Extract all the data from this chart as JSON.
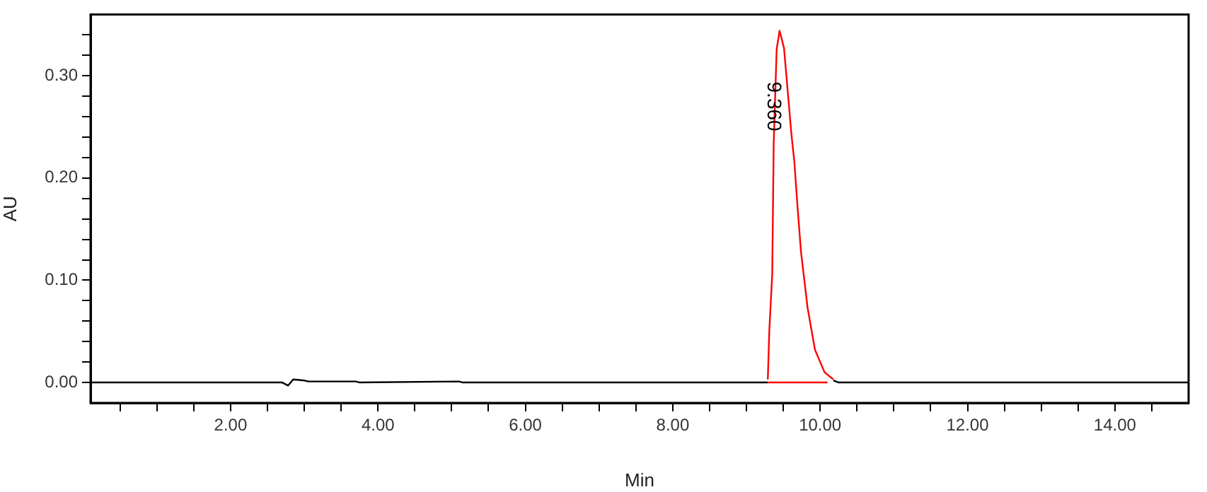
{
  "chart_data": {
    "type": "line",
    "xlabel": "Min",
    "ylabel": "AU",
    "xlim": [
      0.1,
      15
    ],
    "ylim": [
      -0.02,
      0.36
    ],
    "xticks": [
      {
        "value": 0.5,
        "label": null
      },
      {
        "value": 1,
        "label": null
      },
      {
        "value": 1.5,
        "label": null
      },
      {
        "value": 2,
        "label": "2.00"
      },
      {
        "value": 2.5,
        "label": null
      },
      {
        "value": 3,
        "label": null
      },
      {
        "value": 3.5,
        "label": null
      },
      {
        "value": 4,
        "label": "4.00"
      },
      {
        "value": 4.5,
        "label": null
      },
      {
        "value": 5,
        "label": null
      },
      {
        "value": 5.5,
        "label": null
      },
      {
        "value": 6,
        "label": "6.00"
      },
      {
        "value": 6.5,
        "label": null
      },
      {
        "value": 7,
        "label": null
      },
      {
        "value": 7.5,
        "label": null
      },
      {
        "value": 8,
        "label": "8.00"
      },
      {
        "value": 8.5,
        "label": null
      },
      {
        "value": 9,
        "label": null
      },
      {
        "value": 9.5,
        "label": null
      },
      {
        "value": 10,
        "label": "10.00"
      },
      {
        "value": 10.5,
        "label": null
      },
      {
        "value": 11,
        "label": null
      },
      {
        "value": 11.5,
        "label": null
      },
      {
        "value": 12,
        "label": "12.00"
      },
      {
        "value": 12.5,
        "label": null
      },
      {
        "value": 13,
        "label": null
      },
      {
        "value": 13.5,
        "label": null
      },
      {
        "value": 14,
        "label": "14.00"
      },
      {
        "value": 14.5,
        "label": null
      }
    ],
    "yticks": [
      {
        "value": 0,
        "label": "0.00"
      },
      {
        "value": 0.02,
        "label": null
      },
      {
        "value": 0.04,
        "label": null
      },
      {
        "value": 0.06,
        "label": null
      },
      {
        "value": 0.08,
        "label": null
      },
      {
        "value": 0.1,
        "label": "0.10"
      },
      {
        "value": 0.12,
        "label": null
      },
      {
        "value": 0.14,
        "label": null
      },
      {
        "value": 0.16,
        "label": null
      },
      {
        "value": 0.18,
        "label": null
      },
      {
        "value": 0.2,
        "label": "0.20"
      },
      {
        "value": 0.22,
        "label": null
      },
      {
        "value": 0.24,
        "label": null
      },
      {
        "value": 0.26,
        "label": null
      },
      {
        "value": 0.28,
        "label": null
      },
      {
        "value": 0.3,
        "label": "0.30"
      },
      {
        "value": 0.32,
        "label": null
      },
      {
        "value": 0.34,
        "label": null
      }
    ],
    "grid": false,
    "legend": false,
    "marker": "none",
    "line_style": "solid",
    "series": [
      {
        "color": "#000000",
        "x": [
          0.1,
          2.7,
          2.78,
          2.85,
          3.0,
          3.05,
          3.7,
          3.75,
          5.1,
          5.15,
          9.29
        ],
        "values": [
          0,
          0,
          -0.003,
          0.003,
          0.002,
          0.001,
          0.001,
          0,
          0.001,
          0,
          0
        ]
      },
      {
        "color": "#ff0000",
        "x": [
          9.29,
          9.31,
          9.35,
          9.37,
          9.41,
          9.45,
          9.51,
          9.61,
          9.65,
          9.69,
          9.74,
          9.83,
          9.93,
          10.06,
          10.18
        ],
        "values": [
          0.003,
          0.05,
          0.106,
          0.234,
          0.326,
          0.344,
          0.327,
          0.243,
          0.216,
          0.175,
          0.128,
          0.073,
          0.032,
          0.01,
          0.003
        ]
      },
      {
        "color": "#ff0000",
        "x": [
          9.29,
          10.1
        ],
        "values": [
          0,
          0
        ]
      },
      {
        "color": "#000000",
        "x": [
          10.18,
          10.25,
          15
        ],
        "values": [
          0.002,
          0,
          0
        ]
      }
    ],
    "annotations": [
      {
        "text": "9.360",
        "x": 9.36,
        "y": 0.27
      }
    ]
  }
}
